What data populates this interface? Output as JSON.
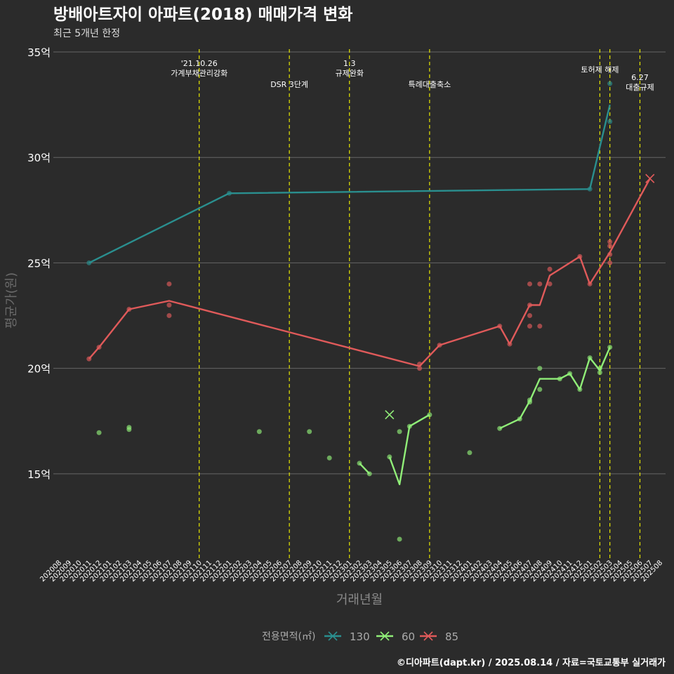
{
  "chart_data": {
    "type": "line",
    "title": "방배아트자이 아파트(2018) 매매가격 변화",
    "subtitle": "최근 5개년 한정",
    "xlabel": "거래년월",
    "ylabel": "평균가(원)",
    "caption": "©디아파트(dapt.kr) / 2025.08.14 / 자료=국토교통부 실거래가",
    "y_ticks": [
      {
        "value": 15,
        "label": "15억"
      },
      {
        "value": 20,
        "label": "20억"
      },
      {
        "value": 25,
        "label": "25억"
      },
      {
        "value": 30,
        "label": "30억"
      },
      {
        "value": 35,
        "label": "35억"
      }
    ],
    "ylim": [
      11,
      35
    ],
    "xlim": [
      "2020-08",
      "2025-08"
    ],
    "x_ticks": [
      "202008",
      "202009",
      "202010",
      "202011",
      "202012",
      "202101",
      "202102",
      "202103",
      "202104",
      "202105",
      "202106",
      "202107",
      "202108",
      "202109",
      "202110",
      "202111",
      "202112",
      "202201",
      "202202",
      "202203",
      "202204",
      "202205",
      "202206",
      "202207",
      "202208",
      "202209",
      "202210",
      "202211",
      "202212",
      "202301",
      "202302",
      "202303",
      "202304",
      "202305",
      "202306",
      "202307",
      "202308",
      "202309",
      "202310",
      "202311",
      "202312",
      "202401",
      "202402",
      "202403",
      "202404",
      "202405",
      "202406",
      "202407",
      "202408",
      "202409",
      "202410",
      "202411",
      "202412",
      "202501",
      "202502",
      "202503",
      "202504",
      "202505",
      "202506",
      "202507",
      "202508"
    ],
    "grid": true,
    "legend": {
      "title": "전용면적(㎡)",
      "placement": "bottom",
      "entries": [
        "130",
        "60",
        "85"
      ]
    },
    "events": [
      {
        "date": "2021-10",
        "text": [
          "'21.10.26",
          "가계부채관리강화"
        ]
      },
      {
        "date": "2022-07",
        "text": [
          "DSR 3단계"
        ]
      },
      {
        "date": "2023-01",
        "text": [
          "1.3",
          "규제완화"
        ]
      },
      {
        "date": "2023-09",
        "text": [
          "특례대출축소"
        ]
      },
      {
        "date": "2025-02",
        "text": [
          "토허제 해제"
        ]
      },
      {
        "date": "2025-03",
        "text": [
          ""
        ]
      },
      {
        "date": "2025-06",
        "text": [
          "6.27",
          "대출규제"
        ]
      }
    ],
    "series": [
      {
        "name": "130",
        "color": "#2a8f8f",
        "line": [
          [
            "2020-11",
            25.0
          ],
          [
            "2022-01",
            28.3
          ],
          [
            "2025-01",
            28.5
          ],
          [
            "2025-03",
            32.5
          ]
        ],
        "points": [
          [
            "2020-11",
            25.0
          ],
          [
            "2022-01",
            28.3
          ],
          [
            "2025-01",
            28.5
          ],
          [
            "2025-03",
            33.5
          ],
          [
            "2025-03",
            31.7
          ]
        ],
        "cancelled": []
      },
      {
        "name": "60",
        "color": "#90ee78",
        "line": [
          [
            [
              "2023-02",
              15.5
            ],
            [
              "2023-03",
              15.0
            ]
          ],
          [
            [
              "2023-05",
              15.8
            ],
            [
              "2023-06",
              14.5
            ],
            [
              "2023-07",
              17.25
            ],
            [
              "2023-09",
              17.8
            ]
          ],
          [
            [
              "2024-04",
              17.15
            ],
            [
              "2024-06",
              17.6
            ],
            [
              "2024-07",
              18.45
            ],
            [
              "2024-08",
              19.5
            ],
            [
              "2024-10",
              19.5
            ],
            [
              "2024-11",
              19.75
            ],
            [
              "2024-12",
              19.0
            ],
            [
              "2025-01",
              20.5
            ],
            [
              "2025-02",
              19.9
            ],
            [
              "2025-03",
              21.0
            ]
          ]
        ],
        "points": [
          [
            "2020-12",
            16.95
          ],
          [
            "2021-03",
            17.2
          ],
          [
            "2021-03",
            17.1
          ],
          [
            "2022-04",
            17.0
          ],
          [
            "2022-09",
            17.0
          ],
          [
            "2022-11",
            15.75
          ],
          [
            "2023-02",
            15.5
          ],
          [
            "2023-03",
            15.0
          ],
          [
            "2023-05",
            15.8
          ],
          [
            "2023-06",
            17.0
          ],
          [
            "2023-06",
            11.9
          ],
          [
            "2023-07",
            17.25
          ],
          [
            "2023-09",
            17.8
          ],
          [
            "2024-01",
            16.0
          ],
          [
            "2024-04",
            17.15
          ],
          [
            "2024-06",
            17.6
          ],
          [
            "2024-07",
            18.5
          ],
          [
            "2024-07",
            18.4
          ],
          [
            "2024-08",
            20.0
          ],
          [
            "2024-08",
            19.0
          ],
          [
            "2024-10",
            19.5
          ],
          [
            "2024-11",
            19.75
          ],
          [
            "2024-12",
            19.0
          ],
          [
            "2025-01",
            20.5
          ],
          [
            "2025-02",
            20.0
          ],
          [
            "2025-02",
            19.8
          ],
          [
            "2025-03",
            21.0
          ]
        ],
        "cancelled": [
          [
            "2023-05",
            17.8
          ]
        ]
      },
      {
        "name": "85",
        "color": "#e05a5a",
        "line": [
          [
            "2020-11",
            20.45
          ],
          [
            "2020-12",
            21.0
          ],
          [
            "2021-03",
            22.8
          ],
          [
            "2021-07",
            23.2
          ],
          [
            "2023-08",
            20.1
          ],
          [
            "2023-10",
            21.1
          ],
          [
            "2024-04",
            22.0
          ],
          [
            "2024-05",
            21.15
          ],
          [
            "2024-07",
            23.0
          ],
          [
            "2024-08",
            23.0
          ],
          [
            "2024-09",
            24.4
          ],
          [
            "2024-12",
            25.3
          ],
          [
            "2025-01",
            24.0
          ],
          [
            "2025-03",
            25.5
          ],
          [
            "2025-07",
            29.0
          ]
        ],
        "points": [
          [
            "2020-11",
            20.45
          ],
          [
            "2020-12",
            21.0
          ],
          [
            "2021-03",
            22.8
          ],
          [
            "2021-07",
            24.0
          ],
          [
            "2021-07",
            23.0
          ],
          [
            "2021-07",
            22.5
          ],
          [
            "2023-08",
            20.2
          ],
          [
            "2023-08",
            20.0
          ],
          [
            "2023-10",
            21.1
          ],
          [
            "2024-04",
            22.0
          ],
          [
            "2024-05",
            21.15
          ],
          [
            "2024-07",
            24.0
          ],
          [
            "2024-07",
            23.0
          ],
          [
            "2024-07",
            22.5
          ],
          [
            "2024-07",
            22.0
          ],
          [
            "2024-08",
            24.0
          ],
          [
            "2024-08",
            22.0
          ],
          [
            "2024-09",
            24.7
          ],
          [
            "2024-09",
            24.0
          ],
          [
            "2024-12",
            25.3
          ],
          [
            "2025-01",
            24.0
          ],
          [
            "2025-03",
            26.0
          ],
          [
            "2025-03",
            25.8
          ],
          [
            "2025-03",
            25.4
          ],
          [
            "2025-03",
            25.0
          ]
        ],
        "cancelled": [
          [
            "2025-07",
            29.0
          ]
        ]
      }
    ]
  }
}
